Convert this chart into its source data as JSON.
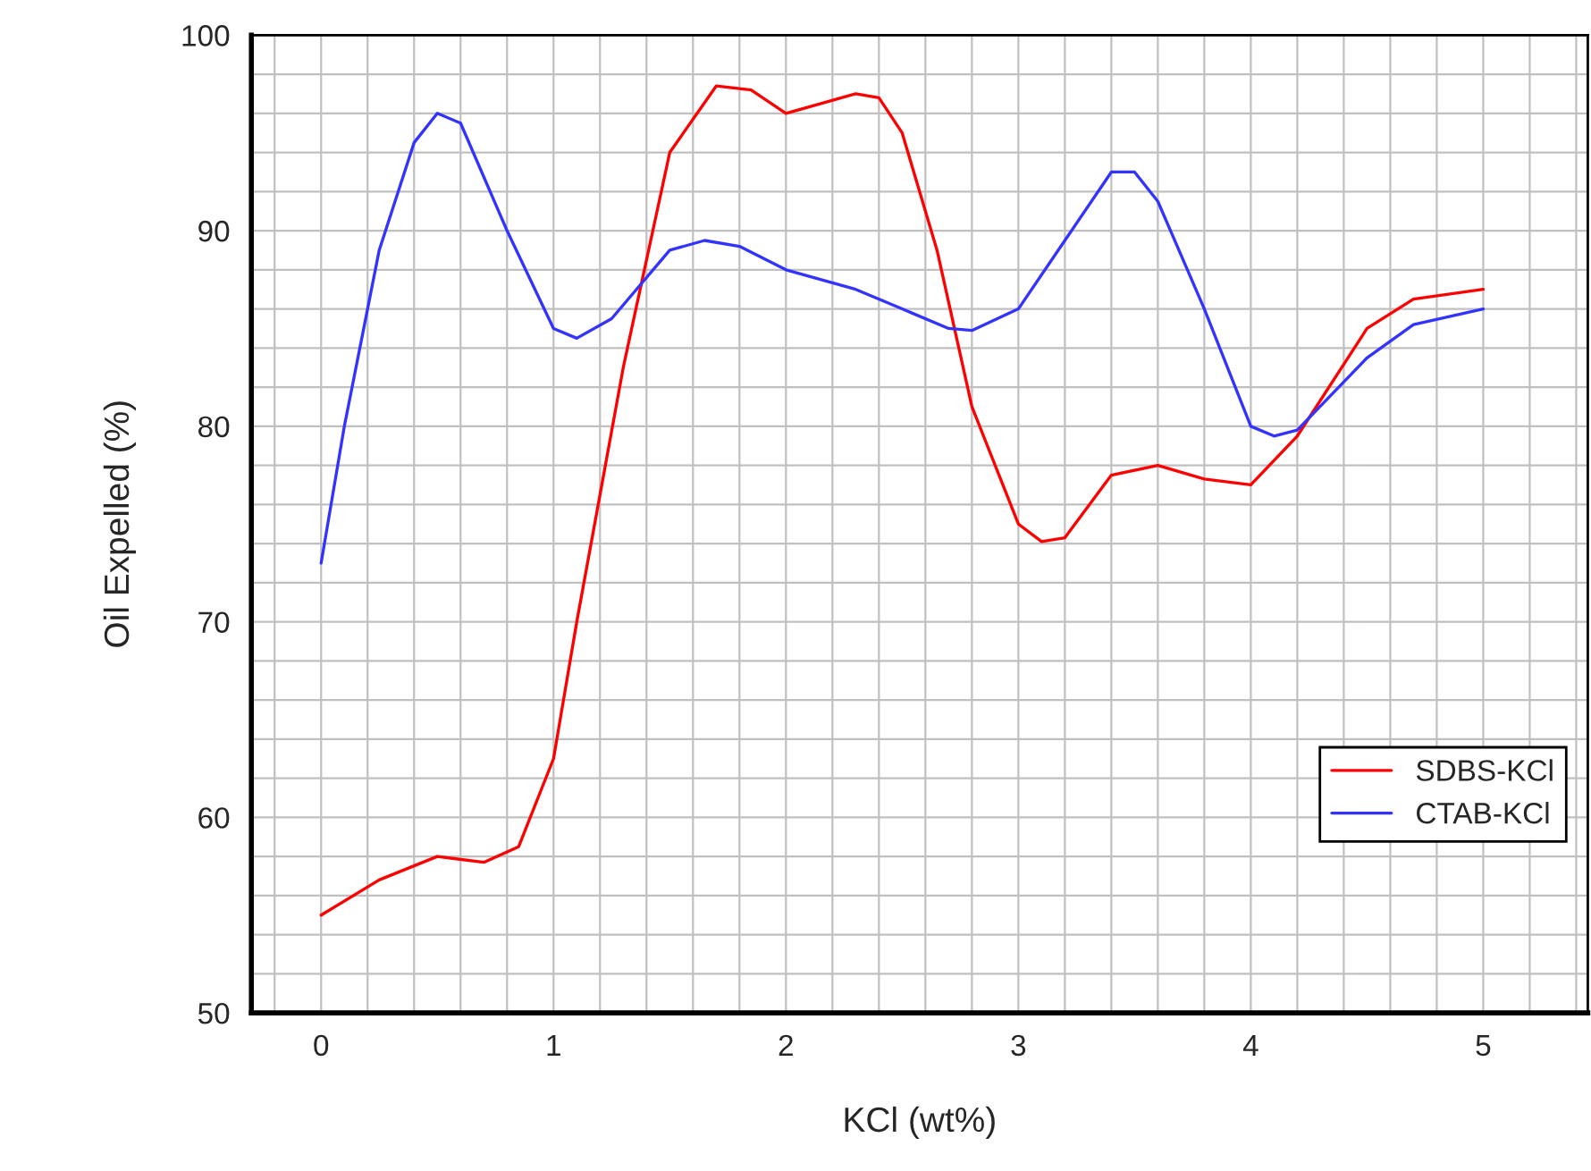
{
  "chart_data": {
    "type": "line",
    "xlabel": "KCl (wt%)",
    "ylabel": "Oil Expelled (%)",
    "xlim": [
      -0.3,
      5.45
    ],
    "xticks": [
      0,
      1,
      2,
      3,
      4,
      5
    ],
    "ylim": [
      50,
      100
    ],
    "yticks": [
      50,
      60,
      70,
      80,
      90,
      100
    ],
    "grid": true,
    "legend": "lower right",
    "marker": "none",
    "line_style": "solid",
    "series": [
      {
        "name": "SDBS-KCl",
        "color": "#ff0000",
        "x": [
          0,
          0.25,
          0.5,
          0.7,
          0.85,
          1,
          1.1,
          1.3,
          1.5,
          1.7,
          1.85,
          2,
          2.15,
          2.3,
          2.4,
          2.5,
          2.65,
          2.8,
          3,
          3.1,
          3.2,
          3.4,
          3.6,
          3.8,
          4,
          4.2,
          4.5,
          4.7,
          5
        ],
        "values": [
          55,
          56.8,
          58,
          57.7,
          58.5,
          63,
          70,
          83,
          94,
          97.4,
          97.2,
          96,
          96.5,
          97,
          96.8,
          95,
          89,
          81,
          75,
          74.1,
          74.3,
          77.5,
          78,
          77.3,
          77,
          79.5,
          85,
          86.5,
          87
        ]
      },
      {
        "name": "CTAB-KCl",
        "color": "#3333ff",
        "x": [
          0,
          0.1,
          0.25,
          0.4,
          0.5,
          0.6,
          0.8,
          1,
          1.1,
          1.25,
          1.5,
          1.65,
          1.8,
          2,
          2.3,
          2.5,
          2.7,
          2.8,
          3,
          3.2,
          3.4,
          3.5,
          3.6,
          3.8,
          4,
          4.1,
          4.2,
          4.5,
          4.7,
          5
        ],
        "values": [
          73,
          80,
          89,
          94.5,
          96,
          95.5,
          90,
          85,
          84.5,
          85.5,
          89,
          89.5,
          89.2,
          88,
          87,
          86,
          85,
          84.9,
          86,
          89.5,
          93,
          93,
          91.5,
          86,
          80,
          79.5,
          79.8,
          83.5,
          85.2,
          86
        ]
      }
    ]
  }
}
